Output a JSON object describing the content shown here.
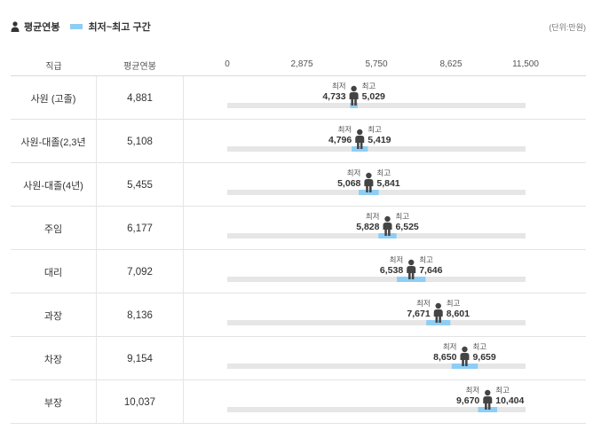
{
  "legend": {
    "avg_label": "평균연봉",
    "range_label": "최저~최고 구간",
    "person_icon": "person-icon"
  },
  "unit": "(단위:만원)",
  "headers": {
    "rank": "직급",
    "avg": "평균연봉"
  },
  "labels": {
    "min": "최저",
    "max": "최고"
  },
  "colors": {
    "range": "#8ecdf4",
    "track": "#e6e6e6",
    "person": "#444444"
  },
  "chart_data": {
    "type": "range",
    "xlim": [
      0,
      11500
    ],
    "ticks": [
      "0",
      "2,875",
      "5,750",
      "8,625",
      "11,500"
    ],
    "tick_values": [
      0,
      2875,
      5750,
      8625,
      11500
    ],
    "rows": [
      {
        "rank": "사원 (고졸)",
        "avg": 4881,
        "avg_label": "4,881",
        "min": 4733,
        "min_label": "4,733",
        "max": 5029,
        "max_label": "5,029"
      },
      {
        "rank": "사원-대졸(2,3년",
        "avg": 5108,
        "avg_label": "5,108",
        "min": 4796,
        "min_label": "4,796",
        "max": 5419,
        "max_label": "5,419"
      },
      {
        "rank": "사원-대졸(4년)",
        "avg": 5455,
        "avg_label": "5,455",
        "min": 5068,
        "min_label": "5,068",
        "max": 5841,
        "max_label": "5,841"
      },
      {
        "rank": "주임",
        "avg": 6177,
        "avg_label": "6,177",
        "min": 5828,
        "min_label": "5,828",
        "max": 6525,
        "max_label": "6,525"
      },
      {
        "rank": "대리",
        "avg": 7092,
        "avg_label": "7,092",
        "min": 6538,
        "min_label": "6,538",
        "max": 7646,
        "max_label": "7,646"
      },
      {
        "rank": "과장",
        "avg": 8136,
        "avg_label": "8,136",
        "min": 7671,
        "min_label": "7,671",
        "max": 8601,
        "max_label": "8,601"
      },
      {
        "rank": "차장",
        "avg": 9154,
        "avg_label": "9,154",
        "min": 8650,
        "min_label": "8,650",
        "max": 9659,
        "max_label": "9,659"
      },
      {
        "rank": "부장",
        "avg": 10037,
        "avg_label": "10,037",
        "min": 9670,
        "min_label": "9,670",
        "max": 10404,
        "max_label": "10,404"
      }
    ]
  }
}
